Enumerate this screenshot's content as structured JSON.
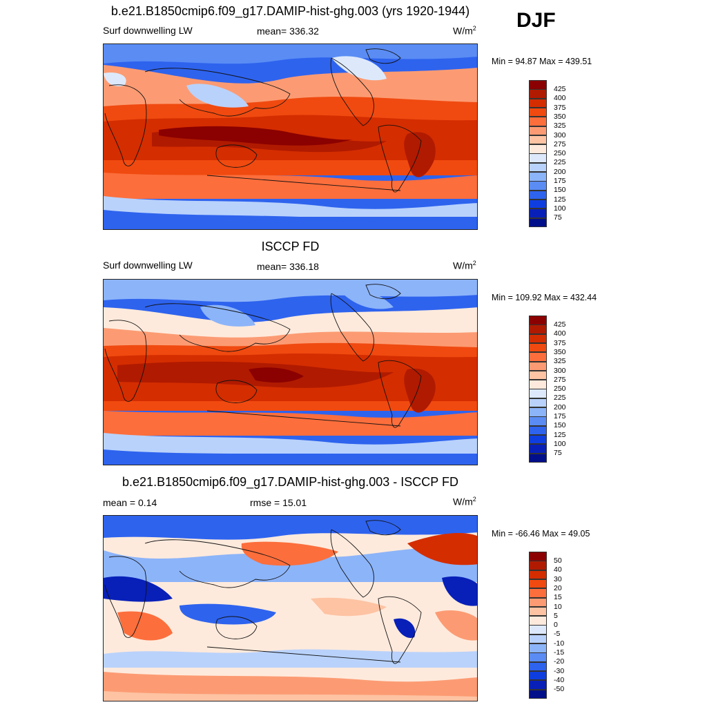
{
  "season": "DJF",
  "panels": [
    {
      "title": "b.e21.B1850cmip6.f09_g17.DAMIP-hist-ghg.003 (yrs 1920-1944)",
      "left_label": "Surf downwelling LW",
      "center_label": "mean= 336.32",
      "units": "W/m",
      "units_sup": "2",
      "minmax": "Min =  94.87 Max = 439.51",
      "colorbar_labels": [
        "425",
        "400",
        "375",
        "350",
        "325",
        "300",
        "275",
        "250",
        "225",
        "200",
        "175",
        "150",
        "125",
        "100",
        "75"
      ]
    },
    {
      "title": "ISCCP FD",
      "left_label": "Surf downwelling LW",
      "center_label": "mean= 336.18",
      "units": "W/m",
      "units_sup": "2",
      "minmax": "Min = 109.92 Max = 432.44",
      "colorbar_labels": [
        "425",
        "400",
        "375",
        "350",
        "325",
        "300",
        "275",
        "250",
        "225",
        "200",
        "175",
        "150",
        "125",
        "100",
        "75"
      ]
    },
    {
      "title": "b.e21.B1850cmip6.f09_g17.DAMIP-hist-ghg.003 - ISCCP FD",
      "left_label": "mean =   0.14",
      "center_label": "rmse =  15.01",
      "units": "W/m",
      "units_sup": "2",
      "minmax": "Min = -66.46 Max =  49.05",
      "colorbar_labels": [
        "50",
        "40",
        "30",
        "20",
        "15",
        "10",
        "5",
        "0",
        "-5",
        "-10",
        "-15",
        "-20",
        "-30",
        "-40",
        "-50"
      ]
    }
  ],
  "colors": {
    "levels": [
      "#8b0000",
      "#b01a00",
      "#d42d00",
      "#f04a10",
      "#fc6e3c",
      "#fc9b73",
      "#fdc3a3",
      "#feeadc",
      "#dde9fb",
      "#b9d2fb",
      "#8cb4f9",
      "#5a8cf4",
      "#2e63ee",
      "#0f3ee0",
      "#0820b8",
      "#020f8a"
    ],
    "model_hot": "#b82000",
    "ocean_low": "#2e63ee"
  }
}
